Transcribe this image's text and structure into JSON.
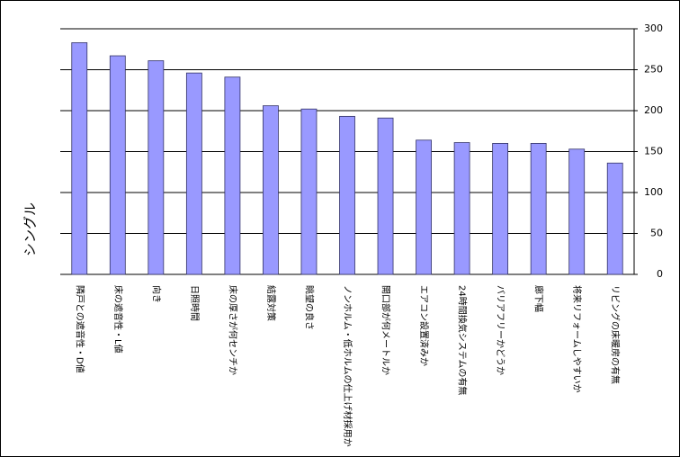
{
  "chart_data": {
    "type": "bar",
    "y_label": "シングル",
    "categories": [
      "隣戸との遮音性・D値",
      "床の遮音性・L値",
      "向き",
      "日照時間",
      "床の厚さが何センチか",
      "結露対策",
      "眺望の良さ",
      "ノンホルム・低ホルムの仕上げ材採用か",
      "開口部が何メートルか",
      "エアコン設置済みか",
      "24時間換気システムの有無",
      "バリアフリーかどうか",
      "廊下幅",
      "将来リフォームしやすいか",
      "リビングの床暖房の有無"
    ],
    "values": [
      283,
      267,
      261,
      246,
      241,
      206,
      202,
      193,
      191,
      164,
      161,
      160,
      160,
      153,
      136
    ],
    "color": "#9999ff",
    "ylim": [
      0,
      300
    ],
    "yticks": [
      0,
      50,
      100,
      150,
      200,
      250,
      300
    ],
    "grid": true,
    "y_axis_side": "right"
  }
}
